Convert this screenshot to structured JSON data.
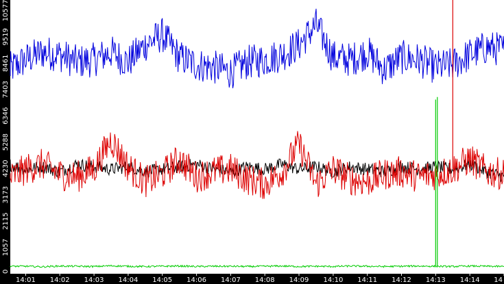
{
  "chart_data": {
    "type": "line",
    "title": "",
    "xlabel": "",
    "ylabel": "",
    "ylim": [
      0,
      11000
    ],
    "xlim": [
      "14:00:33",
      "14:15:00"
    ],
    "grid": false,
    "legend": "none",
    "y_tick_labels": [
      "0",
      "1057",
      "2115",
      "3173",
      "4230",
      "5288",
      "6346",
      "7403",
      "8461",
      "9519",
      "10577"
    ],
    "x_tick_labels": [
      "14:01",
      "14:02",
      "14:03",
      "14:04",
      "14:05",
      "14:06",
      "14:07",
      "14:08",
      "14:09",
      "14:10",
      "14:11",
      "14:12",
      "14:13",
      "14:14",
      "14"
    ],
    "x": [
      "14:00:30",
      "14:01:00",
      "14:01:30",
      "14:02:00",
      "14:02:30",
      "14:03:00",
      "14:03:30",
      "14:04:00",
      "14:04:30",
      "14:05:00",
      "14:05:30",
      "14:06:00",
      "14:06:30",
      "14:07:00",
      "14:07:30",
      "14:08:00",
      "14:08:30",
      "14:09:00",
      "14:09:30",
      "14:10:00",
      "14:10:30",
      "14:11:00",
      "14:11:30",
      "14:12:00",
      "14:12:30",
      "14:13:00",
      "14:13:30",
      "14:14:00",
      "14:14:30",
      "14:15:00"
    ],
    "series": [
      {
        "color": "#0000dd",
        "values": [
          8200,
          8600,
          8900,
          8800,
          8500,
          8600,
          8900,
          8500,
          9200,
          9600,
          8700,
          8400,
          8300,
          8100,
          8500,
          8600,
          8800,
          9200,
          10000,
          8700,
          8600,
          8900,
          8200,
          8700,
          8600,
          8300,
          8400,
          8800,
          9100,
          9000
        ]
      },
      {
        "color": "#000000",
        "values": [
          4400,
          4200,
          4300,
          4100,
          4400,
          4300,
          4200,
          4300,
          4100,
          4200,
          4300,
          4400,
          4200,
          4100,
          4300,
          4200,
          4400,
          4200,
          4300,
          4100,
          4300,
          4200,
          4100,
          4300,
          4200,
          4300,
          4200,
          4400,
          4100,
          3900
        ]
      },
      {
        "color": "#dd0000",
        "values": [
          3800,
          4200,
          4400,
          4000,
          3900,
          4200,
          5400,
          4300,
          3700,
          4000,
          4600,
          3900,
          4100,
          4200,
          3800,
          3600,
          4100,
          5200,
          3600,
          4200,
          3800,
          3700,
          4000,
          4100,
          3900,
          4000,
          4200,
          4600,
          4100,
          4000
        ]
      },
      {
        "color": "#00cc00",
        "values": [
          300,
          300,
          280,
          310,
          300,
          290,
          320,
          300,
          290,
          300,
          310,
          290,
          300,
          300,
          290,
          300,
          310,
          290,
          300,
          290,
          310,
          300,
          290,
          300,
          310,
          300,
          290,
          310,
          300,
          290
        ]
      }
    ],
    "annotations": [
      {
        "series": "#dd0000",
        "x": "14:13:30",
        "y": 11000,
        "note": "spike"
      },
      {
        "series": "#00cc00",
        "x": "14:13:00",
        "y": 7000,
        "note": "spike"
      },
      {
        "series": "#00cc00",
        "x": "14:13:03",
        "y": 7100,
        "note": "spike"
      }
    ]
  }
}
